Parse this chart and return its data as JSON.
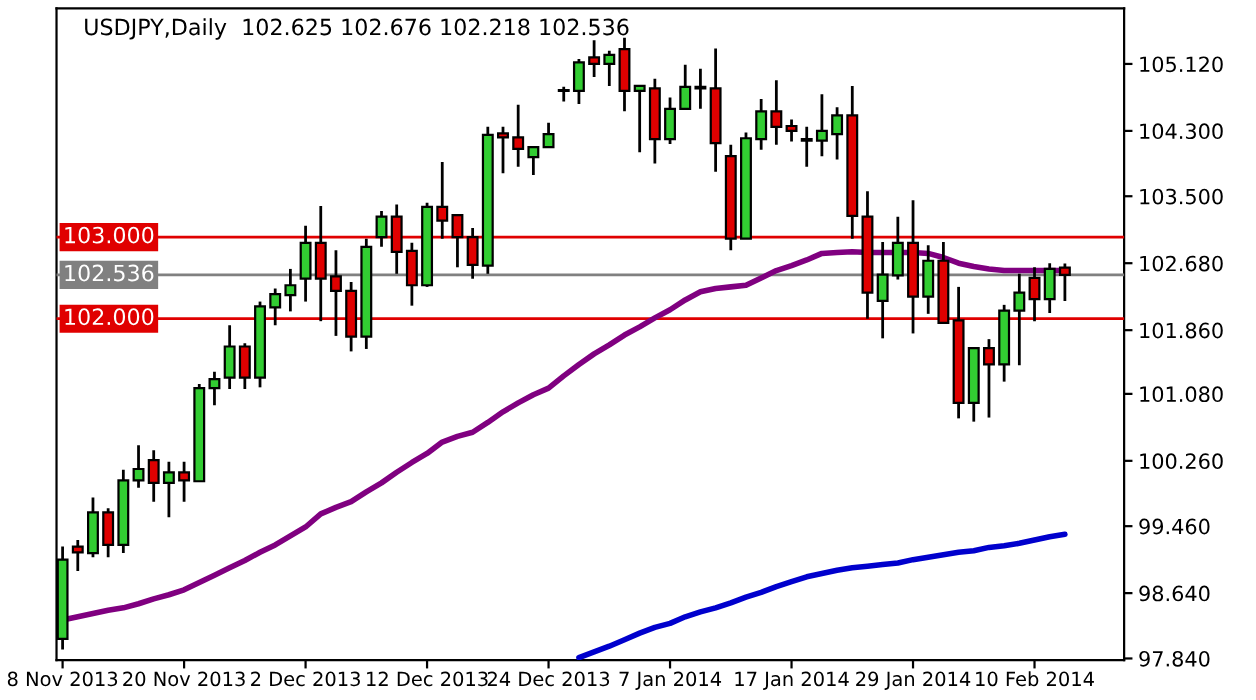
{
  "chart_data": {
    "type": "candlestick",
    "title": "USDJPY,Daily  102.625 102.676 102.218 102.536",
    "categories": [
      "8 Nov 2013",
      null,
      null,
      null,
      null,
      null,
      null,
      null,
      "20 Nov 2013",
      null,
      null,
      null,
      null,
      null,
      null,
      null,
      "2 Dec 2013",
      null,
      null,
      null,
      null,
      null,
      null,
      null,
      "12 Dec 2013",
      null,
      null,
      null,
      null,
      null,
      null,
      null,
      "24 Dec 2013",
      null,
      null,
      null,
      null,
      null,
      null,
      null,
      "7 Jan 2014",
      null,
      null,
      null,
      null,
      null,
      null,
      null,
      "17 Jan 2014",
      null,
      null,
      null,
      null,
      null,
      null,
      null,
      "29 Jan 2014",
      null,
      null,
      null,
      null,
      null,
      null,
      null,
      "10 Feb 2014",
      null,
      null
    ],
    "ohlc": [
      [
        98.08,
        99.21,
        97.95,
        99.05
      ],
      [
        99.21,
        99.29,
        98.91,
        99.14
      ],
      [
        99.13,
        99.81,
        99.08,
        99.63
      ],
      [
        99.63,
        99.68,
        99.08,
        99.23
      ],
      [
        99.23,
        100.15,
        99.13,
        100.02
      ],
      [
        100.02,
        100.45,
        99.93,
        100.16
      ],
      [
        100.27,
        100.39,
        99.76,
        99.99
      ],
      [
        99.99,
        100.25,
        99.57,
        100.12
      ],
      [
        100.12,
        100.25,
        99.76,
        100.02
      ],
      [
        100.01,
        101.2,
        100.01,
        101.15
      ],
      [
        101.15,
        101.35,
        100.94,
        101.26
      ],
      [
        101.28,
        101.92,
        101.14,
        101.66
      ],
      [
        101.66,
        101.7,
        101.14,
        101.28
      ],
      [
        101.28,
        102.21,
        101.16,
        102.15
      ],
      [
        102.14,
        102.37,
        101.92,
        102.3
      ],
      [
        102.29,
        102.61,
        102.09,
        102.41
      ],
      [
        102.49,
        103.14,
        102.21,
        102.93
      ],
      [
        102.93,
        103.38,
        101.97,
        102.49
      ],
      [
        102.52,
        102.84,
        101.79,
        102.34
      ],
      [
        102.34,
        102.45,
        101.6,
        101.78
      ],
      [
        101.78,
        102.98,
        101.63,
        102.88
      ],
      [
        103.0,
        103.32,
        102.88,
        103.25
      ],
      [
        103.25,
        103.4,
        102.55,
        102.82
      ],
      [
        102.83,
        102.93,
        102.16,
        102.41
      ],
      [
        102.41,
        103.42,
        102.39,
        103.37
      ],
      [
        103.37,
        103.92,
        102.98,
        103.2
      ],
      [
        103.27,
        103.27,
        102.63,
        103.0
      ],
      [
        103.0,
        103.11,
        102.49,
        102.66
      ],
      [
        102.65,
        104.35,
        102.55,
        104.25
      ],
      [
        104.27,
        104.35,
        103.78,
        104.22
      ],
      [
        104.22,
        104.62,
        103.86,
        104.08
      ],
      [
        103.98,
        104.1,
        103.76,
        104.1
      ],
      [
        104.1,
        104.4,
        104.09,
        104.26
      ],
      [
        104.79,
        104.84,
        104.66,
        104.8
      ],
      [
        104.79,
        105.18,
        104.63,
        105.14
      ],
      [
        105.2,
        105.41,
        104.96,
        105.12
      ],
      [
        105.12,
        105.28,
        104.85,
        105.23
      ],
      [
        105.3,
        105.44,
        104.54,
        104.79
      ],
      [
        104.79,
        104.85,
        104.04,
        104.85
      ],
      [
        104.82,
        104.94,
        103.9,
        104.2
      ],
      [
        104.2,
        104.71,
        104.14,
        104.57
      ],
      [
        104.57,
        105.11,
        104.57,
        104.84
      ],
      [
        104.82,
        105.06,
        104.57,
        104.84
      ],
      [
        104.82,
        105.31,
        103.8,
        104.15
      ],
      [
        103.99,
        104.13,
        102.84,
        102.98
      ],
      [
        102.98,
        104.28,
        102.98,
        104.21
      ],
      [
        104.2,
        104.69,
        104.07,
        104.54
      ],
      [
        104.54,
        104.92,
        104.13,
        104.35
      ],
      [
        104.36,
        104.44,
        104.17,
        104.3
      ],
      [
        104.18,
        104.35,
        103.86,
        104.2
      ],
      [
        104.18,
        104.75,
        103.99,
        104.3
      ],
      [
        104.26,
        104.59,
        103.95,
        104.49
      ],
      [
        104.49,
        104.85,
        102.98,
        103.26
      ],
      [
        103.25,
        103.56,
        102.0,
        102.32
      ],
      [
        102.22,
        102.94,
        101.76,
        102.54
      ],
      [
        102.53,
        103.25,
        102.48,
        102.93
      ],
      [
        102.93,
        103.45,
        101.82,
        102.27
      ],
      [
        102.27,
        102.9,
        102.06,
        102.71
      ],
      [
        102.71,
        102.94,
        101.95,
        101.95
      ],
      [
        101.98,
        102.39,
        100.78,
        100.97
      ],
      [
        100.97,
        101.64,
        100.74,
        101.64
      ],
      [
        101.64,
        101.75,
        100.79,
        101.44
      ],
      [
        101.44,
        102.17,
        101.23,
        102.1
      ],
      [
        102.1,
        102.55,
        101.43,
        102.32
      ],
      [
        102.5,
        102.63,
        101.97,
        102.24
      ],
      [
        102.24,
        102.68,
        102.07,
        102.61
      ],
      [
        102.625,
        102.676,
        102.218,
        102.536
      ]
    ],
    "colors": [
      "#32cd32",
      "#e00000",
      "#32cd32",
      "#e00000",
      "#32cd32",
      "#32cd32",
      "#e00000",
      "#32cd32",
      "#e00000",
      "#32cd32",
      "#32cd32",
      "#32cd32",
      "#e00000",
      "#32cd32",
      "#32cd32",
      "#32cd32",
      "#32cd32",
      "#e00000",
      "#e00000",
      "#e00000",
      "#32cd32",
      "#32cd32",
      "#e00000",
      "#e00000",
      "#32cd32",
      "#e00000",
      "#e00000",
      "#e00000",
      "#32cd32",
      "#e00000",
      "#e00000",
      "#32cd32",
      "#32cd32",
      "#32cd32",
      "#32cd32",
      "#e00000",
      "#32cd32",
      "#e00000",
      "#32cd32",
      "#e00000",
      "#32cd32",
      "#32cd32",
      "#32cd32",
      "#e00000",
      "#e00000",
      "#32cd32",
      "#32cd32",
      "#e00000",
      "#e00000",
      "#32cd32",
      "#32cd32",
      "#32cd32",
      "#e00000",
      "#e00000",
      "#32cd32",
      "#32cd32",
      "#e00000",
      "#32cd32",
      "#e00000",
      "#e00000",
      "#32cd32",
      "#e00000",
      "#32cd32",
      "#32cd32",
      "#e00000",
      "#32cd32",
      "#e00000"
    ],
    "series": [
      {
        "type": "line",
        "color": "#800080",
        "values": [
          98.31,
          98.35,
          98.39,
          98.43,
          98.46,
          98.51,
          98.57,
          98.62,
          98.68,
          98.77,
          98.86,
          98.95,
          99.04,
          99.14,
          99.23,
          99.34,
          99.45,
          99.61,
          99.69,
          99.76,
          99.88,
          99.99,
          100.12,
          100.24,
          100.35,
          100.49,
          100.56,
          100.61,
          100.73,
          100.86,
          100.97,
          101.07,
          101.15,
          101.3,
          101.44,
          101.57,
          101.68,
          101.8,
          101.9,
          102.01,
          102.11,
          102.23,
          102.33,
          102.37,
          102.39,
          102.41,
          102.5,
          102.59,
          102.65,
          102.72,
          102.8,
          102.81,
          102.82,
          102.81,
          102.81,
          102.81,
          102.81,
          102.8,
          102.75,
          102.68,
          102.64,
          102.61,
          102.59,
          102.59,
          102.59,
          102.59,
          102.59
        ]
      },
      {
        "type": "line",
        "color": "#0000cd",
        "values": [
          null,
          null,
          null,
          null,
          null,
          null,
          null,
          null,
          null,
          null,
          null,
          null,
          null,
          null,
          null,
          null,
          null,
          null,
          null,
          null,
          null,
          null,
          null,
          null,
          null,
          null,
          null,
          null,
          null,
          null,
          null,
          null,
          null,
          null,
          97.85,
          97.92,
          97.99,
          98.07,
          98.15,
          98.22,
          98.27,
          98.35,
          98.41,
          98.46,
          98.52,
          98.59,
          98.65,
          98.72,
          98.78,
          98.84,
          98.88,
          98.92,
          98.95,
          98.97,
          98.99,
          99.01,
          99.05,
          99.08,
          99.11,
          99.14,
          99.16,
          99.2,
          99.22,
          99.25,
          99.29,
          99.33,
          99.36
        ]
      }
    ],
    "ylim": [
      97.82,
      105.8
    ],
    "yticks": [
      {
        "value": 97.84,
        "label": "97.840"
      },
      {
        "value": 98.64,
        "label": "98.640"
      },
      {
        "value": 99.46,
        "label": "99.460"
      },
      {
        "value": 100.26,
        "label": "100.260"
      },
      {
        "value": 101.08,
        "label": "101.080"
      },
      {
        "value": 101.86,
        "label": "101.860"
      },
      {
        "value": 102.68,
        "label": "102.680"
      },
      {
        "value": 103.5,
        "label": "103.500"
      },
      {
        "value": 104.3,
        "label": "104.300"
      },
      {
        "value": 105.12,
        "label": "105.120"
      }
    ],
    "ref_lines": [
      {
        "axis": "y",
        "value": 103.0,
        "label": "103.000",
        "color": "#e00000"
      },
      {
        "axis": "y",
        "value": 102.0,
        "label": "102.000",
        "color": "#e00000"
      },
      {
        "axis": "y",
        "value": 102.536,
        "label": "102.536",
        "color": "#808080"
      }
    ],
    "grid": false,
    "legend": false
  }
}
